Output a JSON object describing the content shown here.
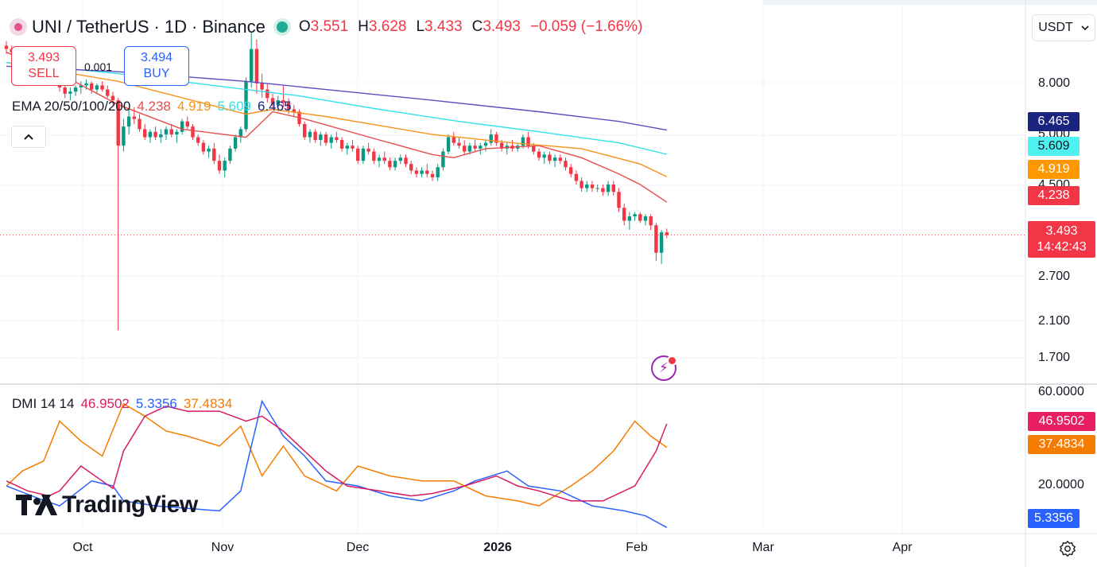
{
  "header": {
    "symbol": "UNI / TetherUS",
    "interval": "1D",
    "exchange": "Binance",
    "sep": "·",
    "ohlc": [
      {
        "k": "O",
        "v": "3.551"
      },
      {
        "k": "H",
        "v": "3.628"
      },
      {
        "k": "L",
        "v": "3.433"
      },
      {
        "k": "C",
        "v": "3.493"
      }
    ],
    "change": "−0.059 (−1.66%)"
  },
  "trade": {
    "sell_price": "3.493",
    "sell_label": "SELL",
    "buy_price": "3.494",
    "buy_label": "BUY",
    "spread": "0.001"
  },
  "ema_legend": {
    "name": "EMA 20/50/100/200",
    "values": [
      {
        "v": "4.238",
        "color": "#e74c4c"
      },
      {
        "v": "4.919",
        "color": "#f7931a"
      },
      {
        "v": "5.609",
        "color": "#34e0e8"
      },
      {
        "v": "6.465",
        "color": "#1a237e"
      }
    ]
  },
  "dmi_legend": {
    "name": "DMI 14 14",
    "values": [
      {
        "v": "46.9502",
        "color": "#d81b60"
      },
      {
        "v": "5.3356",
        "color": "#2962ff"
      },
      {
        "v": "37.4834",
        "color": "#f57c00"
      }
    ]
  },
  "currency": "USDT",
  "price_axis": {
    "ticks": [
      "8.000",
      "5.000",
      "4.500",
      "2.700",
      "2.100",
      "1.700"
    ]
  },
  "dmi_axis": {
    "ticks": [
      "60.0000",
      "20.0000"
    ]
  },
  "badges": [
    {
      "v": "6.465",
      "color": "#1a237e",
      "text": "#ffffff"
    },
    {
      "v": "5.609",
      "color": "#4ef0f0",
      "text": "#131722"
    },
    {
      "v": "4.919",
      "color": "#ff9800",
      "text": "#ffffff"
    },
    {
      "v": "4.238",
      "color": "#f23645",
      "text": "#ffffff"
    }
  ],
  "price_badge": {
    "price": "3.493",
    "countdown": "14:42:43"
  },
  "dmi_badges": [
    {
      "v": "46.9502",
      "color": "#e91e63"
    },
    {
      "v": "37.4834",
      "color": "#f57c00"
    },
    {
      "v": "5.3356",
      "color": "#2962ff"
    }
  ],
  "x_axis": [
    {
      "label": "Oct",
      "bold": false
    },
    {
      "label": "Nov",
      "bold": false
    },
    {
      "label": "Dec",
      "bold": false
    },
    {
      "label": "2026",
      "bold": true
    },
    {
      "label": "Feb",
      "bold": false
    },
    {
      "label": "Mar",
      "bold": false
    },
    {
      "label": "Apr",
      "bold": false
    }
  ],
  "brand": "TradingView",
  "chart_data": {
    "type": "candlestick",
    "title": "UNI / TetherUS · 1D · Binance",
    "y_scale": "log",
    "ylim": [
      1.55,
      11.5
    ],
    "candles": [
      [
        10.6,
        10.9,
        10.1,
        10.4
      ],
      [
        10.4,
        10.6,
        10.0,
        10.2
      ],
      [
        10.2,
        10.3,
        9.6,
        9.8
      ],
      [
        9.8,
        10.0,
        9.5,
        9.9
      ],
      [
        9.9,
        10.0,
        9.4,
        9.5
      ],
      [
        9.5,
        9.7,
        9.0,
        9.2
      ],
      [
        9.2,
        9.5,
        8.9,
        9.3
      ],
      [
        9.3,
        9.4,
        8.7,
        8.8
      ],
      [
        8.8,
        9.1,
        8.5,
        9.0
      ],
      [
        9.0,
        9.2,
        8.6,
        8.7
      ],
      [
        8.7,
        8.9,
        8.1,
        8.3
      ],
      [
        8.3,
        8.5,
        7.8,
        8.0
      ],
      [
        8.0,
        8.3,
        7.7,
        8.1
      ],
      [
        8.1,
        8.4,
        7.9,
        8.3
      ],
      [
        8.3,
        8.6,
        8.0,
        8.4
      ],
      [
        8.4,
        8.7,
        8.2,
        8.5
      ],
      [
        8.5,
        8.6,
        8.0,
        8.2
      ],
      [
        8.2,
        8.5,
        8.0,
        8.4
      ],
      [
        8.4,
        8.6,
        8.1,
        8.2
      ],
      [
        8.2,
        8.4,
        7.8,
        7.9
      ],
      [
        7.9,
        8.1,
        7.5,
        7.7
      ],
      [
        7.7,
        7.8,
        2.0,
        5.9
      ],
      [
        5.9,
        6.9,
        5.7,
        6.6
      ],
      [
        6.6,
        7.3,
        6.3,
        7.0
      ],
      [
        7.0,
        7.4,
        6.7,
        6.9
      ],
      [
        6.9,
        7.1,
        6.4,
        6.5
      ],
      [
        6.5,
        6.7,
        6.1,
        6.2
      ],
      [
        6.2,
        6.5,
        6.0,
        6.4
      ],
      [
        6.4,
        6.6,
        6.1,
        6.2
      ],
      [
        6.2,
        6.5,
        6.0,
        6.3
      ],
      [
        6.3,
        6.6,
        6.1,
        6.5
      ],
      [
        6.5,
        6.7,
        6.2,
        6.3
      ],
      [
        6.3,
        6.5,
        6.0,
        6.4
      ],
      [
        6.4,
        6.9,
        6.3,
        6.8
      ],
      [
        6.8,
        7.0,
        6.5,
        6.6
      ],
      [
        6.6,
        6.7,
        6.1,
        6.2
      ],
      [
        6.2,
        6.3,
        5.9,
        6.0
      ],
      [
        6.0,
        6.1,
        5.6,
        5.7
      ],
      [
        5.7,
        5.9,
        5.5,
        5.8
      ],
      [
        5.8,
        6.0,
        5.3,
        5.4
      ],
      [
        5.4,
        5.6,
        5.0,
        5.1
      ],
      [
        5.1,
        5.5,
        4.9,
        5.4
      ],
      [
        5.4,
        5.9,
        5.3,
        5.8
      ],
      [
        5.8,
        6.3,
        5.7,
        6.2
      ],
      [
        6.2,
        6.6,
        6.0,
        6.5
      ],
      [
        6.5,
        8.8,
        6.4,
        8.6
      ],
      [
        8.6,
        11.5,
        8.3,
        10.4
      ],
      [
        10.4,
        11.0,
        8.0,
        8.5
      ],
      [
        8.5,
        9.0,
        7.8,
        8.2
      ],
      [
        8.2,
        8.5,
        7.6,
        7.8
      ],
      [
        7.8,
        8.0,
        7.3,
        7.5
      ],
      [
        7.5,
        7.9,
        7.2,
        7.7
      ],
      [
        7.7,
        8.4,
        7.4,
        7.6
      ],
      [
        7.6,
        7.8,
        7.1,
        7.3
      ],
      [
        7.3,
        7.5,
        7.0,
        7.2
      ],
      [
        7.2,
        7.3,
        6.6,
        6.7
      ],
      [
        6.7,
        6.8,
        6.1,
        6.2
      ],
      [
        6.2,
        6.5,
        6.0,
        6.4
      ],
      [
        6.4,
        6.5,
        6.0,
        6.1
      ],
      [
        6.1,
        6.4,
        5.9,
        6.3
      ],
      [
        6.3,
        6.4,
        5.9,
        6.0
      ],
      [
        6.0,
        6.3,
        5.8,
        6.2
      ],
      [
        6.2,
        6.4,
        6.0,
        6.1
      ],
      [
        6.1,
        6.2,
        5.7,
        5.8
      ],
      [
        5.8,
        6.0,
        5.6,
        5.9
      ],
      [
        5.9,
        6.1,
        5.7,
        5.8
      ],
      [
        5.8,
        5.9,
        5.3,
        5.4
      ],
      [
        5.4,
        5.9,
        5.3,
        5.8
      ],
      [
        5.8,
        6.0,
        5.6,
        5.7
      ],
      [
        5.7,
        5.8,
        5.3,
        5.4
      ],
      [
        5.4,
        5.6,
        5.2,
        5.5
      ],
      [
        5.5,
        5.7,
        5.3,
        5.4
      ],
      [
        5.4,
        5.5,
        5.1,
        5.2
      ],
      [
        5.2,
        5.5,
        5.1,
        5.4
      ],
      [
        5.4,
        5.6,
        5.3,
        5.5
      ],
      [
        5.5,
        5.6,
        5.2,
        5.3
      ],
      [
        5.3,
        5.4,
        5.0,
        5.1
      ],
      [
        5.1,
        5.2,
        4.9,
        5.0
      ],
      [
        5.0,
        5.2,
        4.9,
        5.1
      ],
      [
        5.1,
        5.3,
        4.9,
        5.0
      ],
      [
        5.0,
        5.1,
        4.8,
        4.9
      ],
      [
        4.9,
        5.3,
        4.8,
        5.2
      ],
      [
        5.2,
        5.8,
        5.1,
        5.7
      ],
      [
        5.7,
        6.3,
        5.6,
        6.2
      ],
      [
        6.2,
        6.4,
        5.9,
        6.0
      ],
      [
        6.0,
        6.2,
        5.8,
        5.9
      ],
      [
        5.9,
        6.1,
        5.6,
        5.7
      ],
      [
        5.7,
        6.0,
        5.6,
        5.9
      ],
      [
        5.9,
        6.1,
        5.7,
        5.8
      ],
      [
        5.8,
        6.0,
        5.6,
        5.9
      ],
      [
        5.9,
        6.1,
        5.7,
        6.0
      ],
      [
        6.0,
        6.5,
        5.9,
        6.3
      ],
      [
        6.3,
        6.4,
        5.9,
        6.0
      ],
      [
        6.0,
        6.1,
        5.7,
        5.8
      ],
      [
        5.8,
        6.0,
        5.6,
        5.9
      ],
      [
        5.9,
        6.1,
        5.7,
        5.8
      ],
      [
        5.8,
        6.0,
        5.7,
        5.9
      ],
      [
        5.9,
        6.3,
        5.8,
        6.2
      ],
      [
        6.2,
        6.4,
        5.8,
        5.9
      ],
      [
        5.9,
        6.0,
        5.6,
        5.7
      ],
      [
        5.7,
        5.8,
        5.4,
        5.5
      ],
      [
        5.5,
        5.7,
        5.3,
        5.6
      ],
      [
        5.6,
        5.7,
        5.3,
        5.4
      ],
      [
        5.4,
        5.6,
        5.2,
        5.5
      ],
      [
        5.5,
        5.6,
        5.3,
        5.4
      ],
      [
        5.4,
        5.5,
        5.1,
        5.2
      ],
      [
        5.2,
        5.3,
        4.9,
        5.0
      ],
      [
        5.0,
        5.1,
        4.7,
        4.8
      ],
      [
        4.8,
        4.9,
        4.5,
        4.6
      ],
      [
        4.6,
        4.8,
        4.5,
        4.7
      ],
      [
        4.7,
        4.8,
        4.5,
        4.6
      ],
      [
        4.6,
        4.7,
        4.5,
        4.6
      ],
      [
        4.6,
        4.7,
        4.4,
        4.5
      ],
      [
        4.5,
        4.8,
        4.4,
        4.7
      ],
      [
        4.7,
        4.8,
        4.4,
        4.5
      ],
      [
        4.5,
        4.6,
        4.0,
        4.1
      ],
      [
        4.1,
        4.2,
        3.7,
        3.8
      ],
      [
        3.8,
        4.0,
        3.6,
        3.9
      ],
      [
        3.9,
        4.0,
        3.8,
        3.95
      ],
      [
        3.95,
        4.0,
        3.75,
        3.8
      ],
      [
        3.8,
        3.95,
        3.7,
        3.9
      ],
      [
        3.9,
        3.95,
        3.6,
        3.7
      ],
      [
        3.7,
        3.75,
        3.0,
        3.15
      ],
      [
        3.15,
        3.6,
        2.95,
        3.551
      ],
      [
        3.551,
        3.628,
        3.433,
        3.493
      ]
    ],
    "ema": [
      {
        "name": "EMA 20",
        "color": "#e74c4c",
        "points": [
          [
            0,
            10.2
          ],
          [
            10,
            9.0
          ],
          [
            21,
            7.5
          ],
          [
            33,
            6.5
          ],
          [
            45,
            6.2
          ],
          [
            50,
            7.2
          ],
          [
            56,
            6.9
          ],
          [
            70,
            6.1
          ],
          [
            80,
            5.6
          ],
          [
            84,
            5.5
          ],
          [
            90,
            5.8
          ],
          [
            100,
            5.9
          ],
          [
            108,
            5.5
          ],
          [
            115,
            5.0
          ],
          [
            119,
            4.7
          ],
          [
            124,
            4.238
          ]
        ]
      },
      {
        "name": "EMA 50",
        "color": "#f7931a",
        "points": [
          [
            0,
            9.6
          ],
          [
            21,
            8.6
          ],
          [
            45,
            7.1
          ],
          [
            50,
            7.3
          ],
          [
            60,
            7.0
          ],
          [
            80,
            6.3
          ],
          [
            95,
            6.0
          ],
          [
            108,
            5.8
          ],
          [
            119,
            5.3
          ],
          [
            124,
            4.919
          ]
        ]
      },
      {
        "name": "EMA 100",
        "color": "#34e0e8",
        "points": [
          [
            0,
            9.6
          ],
          [
            21,
            9.0
          ],
          [
            45,
            8.2
          ],
          [
            55,
            7.9
          ],
          [
            70,
            7.3
          ],
          [
            85,
            6.8
          ],
          [
            100,
            6.4
          ],
          [
            115,
            6.0
          ],
          [
            124,
            5.609
          ]
        ]
      },
      {
        "name": "EMA 200",
        "color": "#5b4fbf",
        "points": [
          [
            0,
            9.4
          ],
          [
            21,
            9.1
          ],
          [
            45,
            8.6
          ],
          [
            60,
            8.2
          ],
          [
            80,
            7.7
          ],
          [
            100,
            7.2
          ],
          [
            115,
            6.8
          ],
          [
            124,
            6.465
          ]
        ]
      }
    ],
    "dmi": {
      "ylim": [
        0,
        60
      ],
      "plus_di": [
        [
          0,
          24
        ],
        [
          4,
          20
        ],
        [
          8,
          18
        ],
        [
          10,
          20
        ],
        [
          14,
          30
        ],
        [
          20,
          21
        ],
        [
          22,
          36
        ],
        [
          26,
          50
        ],
        [
          30,
          54
        ],
        [
          34,
          52
        ],
        [
          40,
          52
        ],
        [
          45,
          48
        ],
        [
          48,
          50
        ],
        [
          52,
          44
        ],
        [
          56,
          36
        ],
        [
          60,
          28
        ],
        [
          64,
          22
        ],
        [
          70,
          20
        ],
        [
          76,
          18
        ],
        [
          80,
          19
        ],
        [
          86,
          22
        ],
        [
          92,
          26
        ],
        [
          96,
          22
        ],
        [
          100,
          20
        ],
        [
          106,
          16
        ],
        [
          112,
          16
        ],
        [
          118,
          22
        ],
        [
          122,
          36
        ],
        [
          124,
          46.9502
        ]
      ],
      "minus_di": [
        [
          0,
          22
        ],
        [
          6,
          17
        ],
        [
          10,
          14
        ],
        [
          16,
          24
        ],
        [
          20,
          22
        ],
        [
          22,
          16
        ],
        [
          28,
          14
        ],
        [
          34,
          13
        ],
        [
          40,
          12
        ],
        [
          44,
          20
        ],
        [
          48,
          56
        ],
        [
          52,
          42
        ],
        [
          56,
          34
        ],
        [
          60,
          24
        ],
        [
          66,
          22
        ],
        [
          72,
          18
        ],
        [
          78,
          16
        ],
        [
          84,
          20
        ],
        [
          88,
          24
        ],
        [
          94,
          28
        ],
        [
          98,
          22
        ],
        [
          104,
          20
        ],
        [
          110,
          14
        ],
        [
          116,
          12
        ],
        [
          120,
          10
        ],
        [
          124,
          5.3356
        ]
      ],
      "adx": [
        [
          0,
          22
        ],
        [
          3,
          28
        ],
        [
          7,
          32
        ],
        [
          10,
          48
        ],
        [
          14,
          40
        ],
        [
          18,
          34
        ],
        [
          22,
          55
        ],
        [
          26,
          50
        ],
        [
          30,
          44
        ],
        [
          34,
          42
        ],
        [
          40,
          38
        ],
        [
          44,
          46
        ],
        [
          48,
          26
        ],
        [
          52,
          38
        ],
        [
          56,
          26
        ],
        [
          62,
          20
        ],
        [
          66,
          30
        ],
        [
          72,
          26
        ],
        [
          78,
          24
        ],
        [
          84,
          24
        ],
        [
          90,
          18
        ],
        [
          96,
          16
        ],
        [
          100,
          14
        ],
        [
          106,
          22
        ],
        [
          110,
          28
        ],
        [
          114,
          36
        ],
        [
          118,
          48
        ],
        [
          121,
          42
        ],
        [
          124,
          37.4834
        ]
      ]
    }
  }
}
